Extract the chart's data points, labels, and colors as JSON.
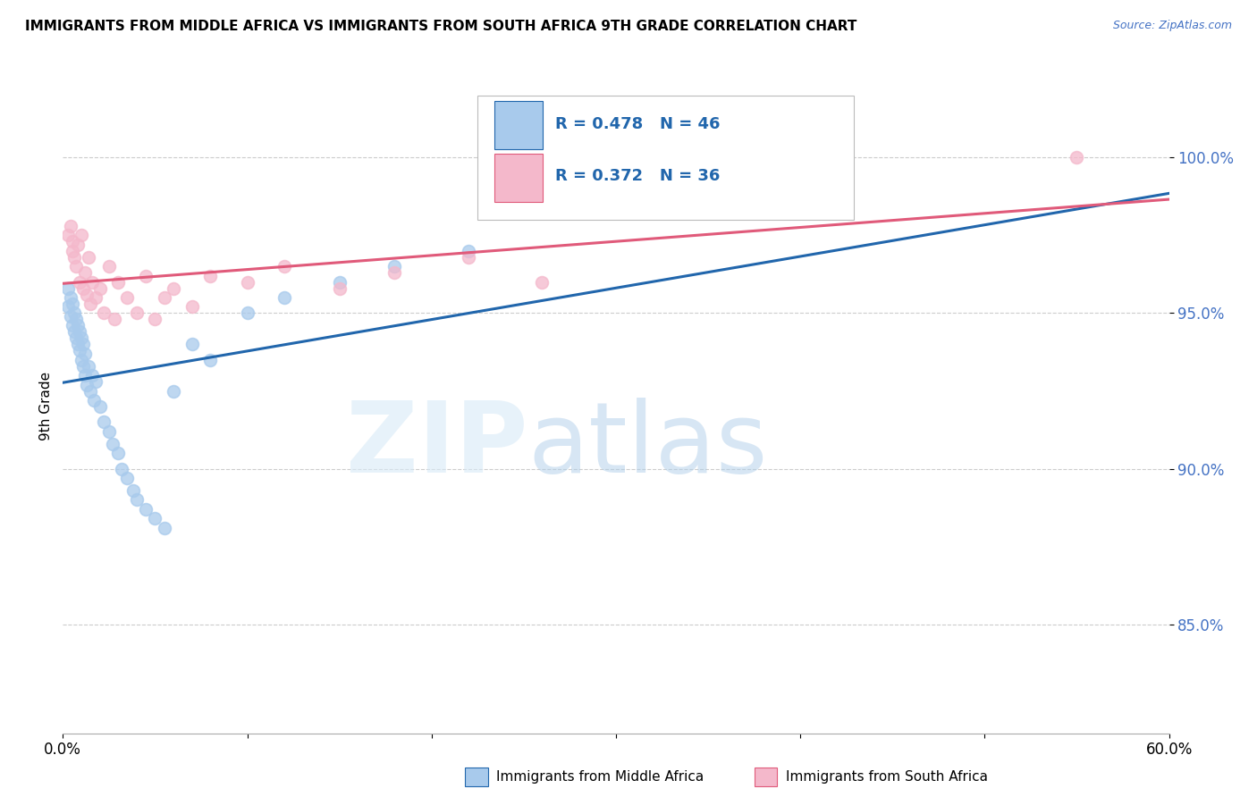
{
  "title": "IMMIGRANTS FROM MIDDLE AFRICA VS IMMIGRANTS FROM SOUTH AFRICA 9TH GRADE CORRELATION CHART",
  "source": "Source: ZipAtlas.com",
  "ylabel": "9th Grade",
  "ytick_labels": [
    "85.0%",
    "90.0%",
    "95.0%",
    "100.0%"
  ],
  "ytick_values": [
    0.85,
    0.9,
    0.95,
    1.0
  ],
  "xlim": [
    0.0,
    0.6
  ],
  "ylim": [
    0.815,
    1.025
  ],
  "R_blue": 0.478,
  "N_blue": 46,
  "R_pink": 0.372,
  "N_pink": 36,
  "blue_color": "#a8caec",
  "pink_color": "#f4b8cb",
  "blue_line_color": "#2166ac",
  "pink_line_color": "#e05a7a",
  "legend_label_blue": "Immigrants from Middle Africa",
  "legend_label_pink": "Immigrants from South Africa",
  "blue_x": [
    0.003,
    0.003,
    0.004,
    0.004,
    0.005,
    0.005,
    0.006,
    0.006,
    0.007,
    0.007,
    0.008,
    0.008,
    0.009,
    0.009,
    0.01,
    0.01,
    0.011,
    0.011,
    0.012,
    0.012,
    0.013,
    0.014,
    0.015,
    0.016,
    0.017,
    0.018,
    0.02,
    0.022,
    0.025,
    0.027,
    0.03,
    0.032,
    0.035,
    0.038,
    0.04,
    0.045,
    0.05,
    0.055,
    0.06,
    0.07,
    0.08,
    0.1,
    0.12,
    0.15,
    0.18,
    0.22
  ],
  "blue_y": [
    0.952,
    0.958,
    0.949,
    0.955,
    0.946,
    0.953,
    0.944,
    0.95,
    0.942,
    0.948,
    0.94,
    0.946,
    0.938,
    0.944,
    0.935,
    0.942,
    0.933,
    0.94,
    0.93,
    0.937,
    0.927,
    0.933,
    0.925,
    0.93,
    0.922,
    0.928,
    0.92,
    0.915,
    0.912,
    0.908,
    0.905,
    0.9,
    0.897,
    0.893,
    0.89,
    0.887,
    0.884,
    0.881,
    0.925,
    0.94,
    0.935,
    0.95,
    0.955,
    0.96,
    0.965,
    0.97
  ],
  "pink_x": [
    0.003,
    0.004,
    0.005,
    0.005,
    0.006,
    0.007,
    0.008,
    0.009,
    0.01,
    0.011,
    0.012,
    0.013,
    0.014,
    0.015,
    0.016,
    0.018,
    0.02,
    0.022,
    0.025,
    0.028,
    0.03,
    0.035,
    0.04,
    0.045,
    0.05,
    0.055,
    0.06,
    0.07,
    0.08,
    0.1,
    0.12,
    0.15,
    0.18,
    0.22,
    0.26,
    0.55
  ],
  "pink_y": [
    0.975,
    0.978,
    0.97,
    0.973,
    0.968,
    0.965,
    0.972,
    0.96,
    0.975,
    0.958,
    0.963,
    0.956,
    0.968,
    0.953,
    0.96,
    0.955,
    0.958,
    0.95,
    0.965,
    0.948,
    0.96,
    0.955,
    0.95,
    0.962,
    0.948,
    0.955,
    0.958,
    0.952,
    0.962,
    0.96,
    0.965,
    0.958,
    0.963,
    0.968,
    0.96,
    1.0
  ],
  "grid_color": "#cccccc",
  "tick_color": "#4472c4"
}
